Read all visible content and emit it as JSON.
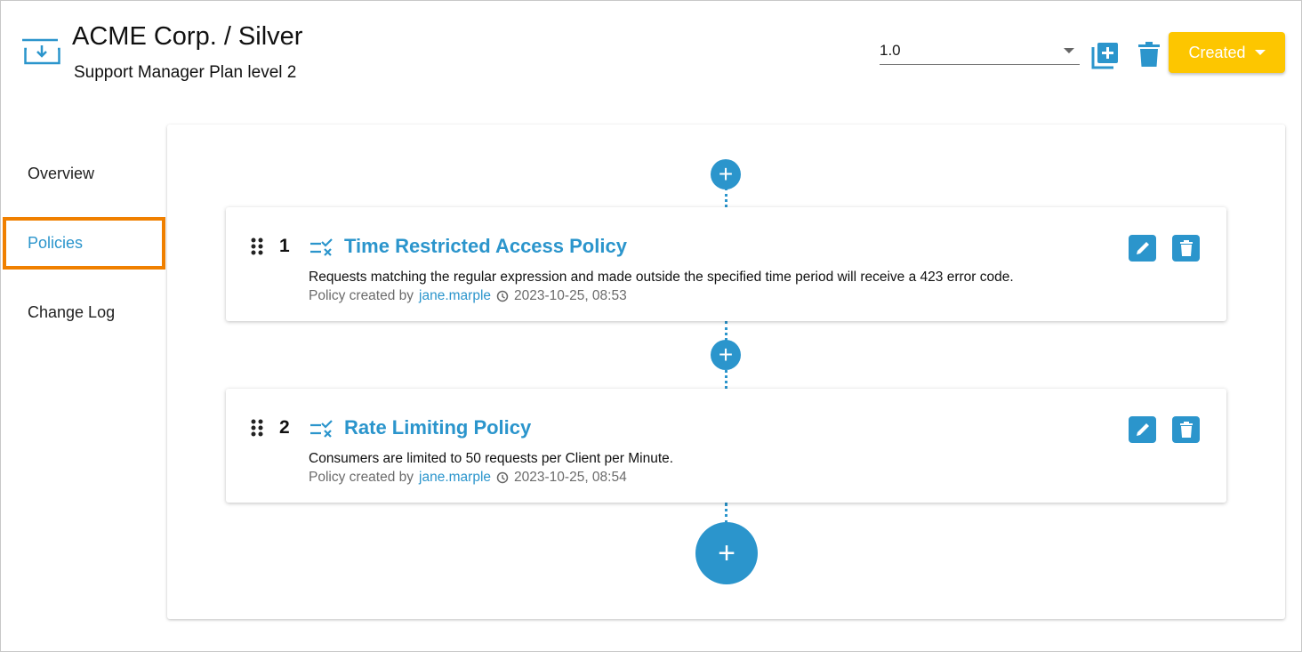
{
  "header": {
    "title": "ACME Corp. / Silver",
    "subtitle": "Support Manager Plan level 2",
    "version": "1.0",
    "status_label": "Created"
  },
  "sidebar": {
    "items": [
      {
        "label": "Overview"
      },
      {
        "label": "Policies",
        "selected": true
      },
      {
        "label": "Change Log"
      }
    ]
  },
  "colors": {
    "accent": "#2b95cc",
    "status": "#fdc600",
    "highlight": "#f08000"
  },
  "policies": [
    {
      "number": "1",
      "title": "Time Restricted Access Policy",
      "description": "Requests matching the regular expression and made outside the specified time period will receive a 423 error code.",
      "created_by_label": "Policy created by",
      "user": "jane.marple",
      "timestamp": "2023-10-25, 08:53"
    },
    {
      "number": "2",
      "title": "Rate Limiting Policy",
      "description": "Consumers are limited to 50 requests per Client per Minute.",
      "created_by_label": "Policy created by",
      "user": "jane.marple",
      "timestamp": "2023-10-25, 08:54"
    }
  ],
  "add_symbol": "+"
}
